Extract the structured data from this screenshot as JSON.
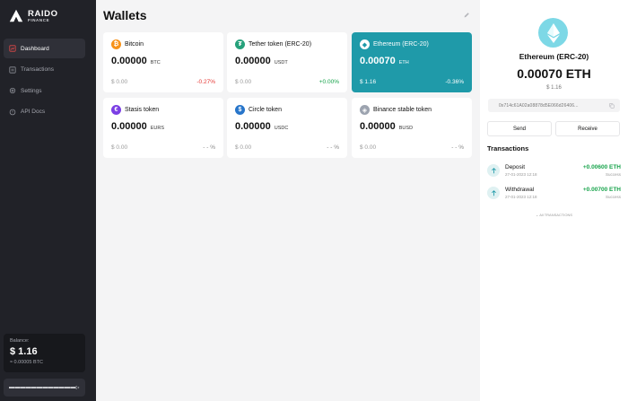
{
  "app": {
    "logo_title": "RAIDO",
    "logo_subtitle": "FINANCE"
  },
  "sidebar": {
    "items": [
      {
        "label": "Dashboard",
        "icon": "dashboard-icon",
        "active": true
      },
      {
        "label": "Transactions",
        "icon": "transactions-icon",
        "active": false
      },
      {
        "label": "Settings",
        "icon": "gear-icon",
        "active": false
      },
      {
        "label": "API Docs",
        "icon": "api-docs-icon",
        "active": false
      }
    ],
    "balance": {
      "label": "Balance:",
      "usd": "$ 1.16",
      "btc": "≈ 0.00005 BTC"
    },
    "user": {
      "name": "▬▬▬▬▬▬▬▬▬▬▬▬"
    }
  },
  "main": {
    "title": "Wallets",
    "wallets": [
      {
        "name": "Bitcoin",
        "icon_glyph": "₿",
        "icon_color": "#f7931a",
        "amount": "0.00000",
        "currency": "BTC",
        "usd": "$ 0.00",
        "change": "-0.27%",
        "trend": "neg"
      },
      {
        "name": "Tether token (ERC-20)",
        "icon_glyph": "₮",
        "icon_color": "#26a17b",
        "amount": "0.00000",
        "currency": "USDT",
        "usd": "$ 0.00",
        "change": "+0.00%",
        "trend": "pos"
      },
      {
        "name": "Ethereum (ERC-20)",
        "icon_glyph": "◆",
        "icon_color": "#ffffff",
        "amount": "0.00070",
        "currency": "ETH",
        "usd": "$ 1.16",
        "change": "-0.36%",
        "trend": "neg",
        "selected": true
      },
      {
        "name": "Stasis token",
        "icon_glyph": "€",
        "icon_color": "#7b3fe4",
        "amount": "0.00000",
        "currency": "EURS",
        "usd": "$ 0.00",
        "change": "- - %",
        "trend": "neu"
      },
      {
        "name": "Circle token",
        "icon_glyph": "$",
        "icon_color": "#2775ca",
        "amount": "0.00000",
        "currency": "USDC",
        "usd": "$ 0.00",
        "change": "- - %",
        "trend": "neu"
      },
      {
        "name": "Binance stable token",
        "icon_glyph": "◈",
        "icon_color": "#9ca3af",
        "amount": "0.00000",
        "currency": "BUSD",
        "usd": "$ 0.00",
        "change": "- - %",
        "trend": "neu"
      }
    ]
  },
  "detail": {
    "name": "Ethereum (ERC-20)",
    "amount": "0.00070 ETH",
    "usd": "$ 1.16",
    "address": "0x714c61A02a08878d5E066d26406...",
    "send_label": "Send",
    "receive_label": "Receive",
    "transactions_title": "Transactions",
    "transactions": [
      {
        "type": "Deposit",
        "date": "27-01-2023 12:18",
        "amount": "+0.00600 ETH",
        "status": "Success"
      },
      {
        "type": "Withdrawal",
        "date": "27-01-2023 12:18",
        "amount": "+0.00700 ETH",
        "status": "Success"
      }
    ],
    "more_label": "All TRANSACTIONS"
  },
  "colors": {
    "sidebar_bg": "#212228",
    "accent": "#1f9aa9",
    "positive": "#16a34a",
    "negative": "#e53935"
  }
}
